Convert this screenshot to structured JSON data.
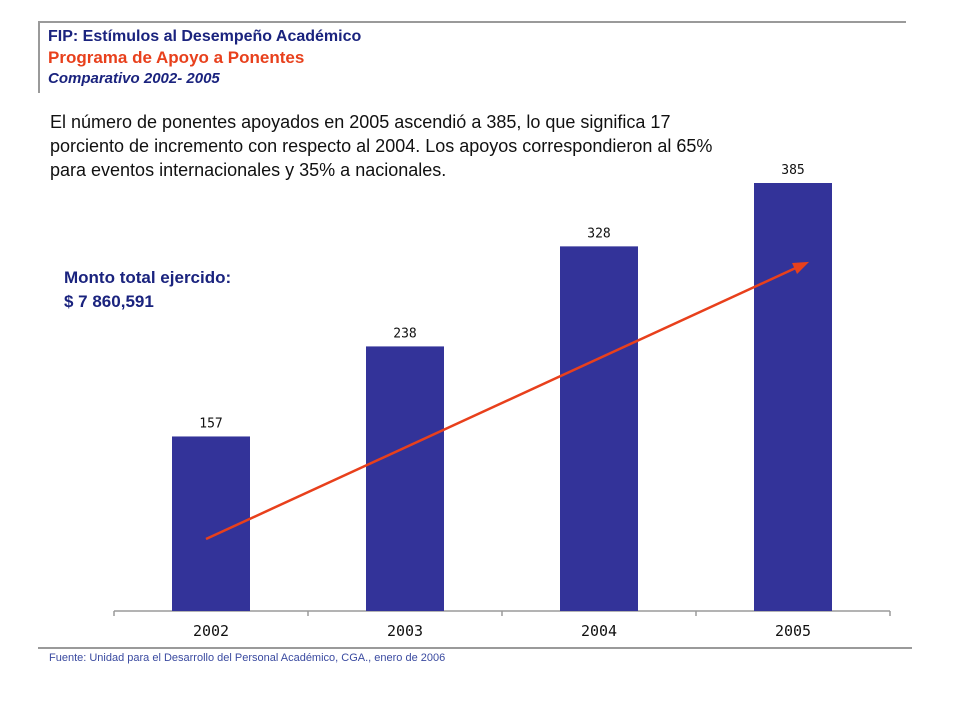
{
  "header": {
    "line1": "FIP: Estímulos al Desempeño Académico",
    "line2": "Programa de Apoyo a Ponentes",
    "line3": "Comparativo 2002- 2005"
  },
  "summary": {
    "line1": "El número de ponentes apoyados en 2005 ascendió a 385, lo que significa 17",
    "line2": "porciento de incremento con respecto al 2004. Los apoyos correspondieron al 65%",
    "line3": "para eventos internacionales y 35% a nacionales."
  },
  "monto": {
    "label": "Monto total ejercido:",
    "value": "$ 7 860,591"
  },
  "source": "Fuente: Unidad para el Desarrollo del Personal Académico, CGA., enero de 2006",
  "colors": {
    "bar": "#333399",
    "trend_arrow": "#e8401c",
    "title": "#1a237e",
    "accent": "#e8401c"
  },
  "chart_data": {
    "type": "bar",
    "categories": [
      "2002",
      "2003",
      "2004",
      "2005"
    ],
    "values": [
      157,
      238,
      328,
      385
    ],
    "data_labels": [
      "157",
      "238",
      "328",
      "385"
    ],
    "title": "",
    "xlabel": "",
    "ylabel": "",
    "ylim": [
      0,
      385
    ],
    "grid": false,
    "legend": "none",
    "trend_arrow": true
  }
}
